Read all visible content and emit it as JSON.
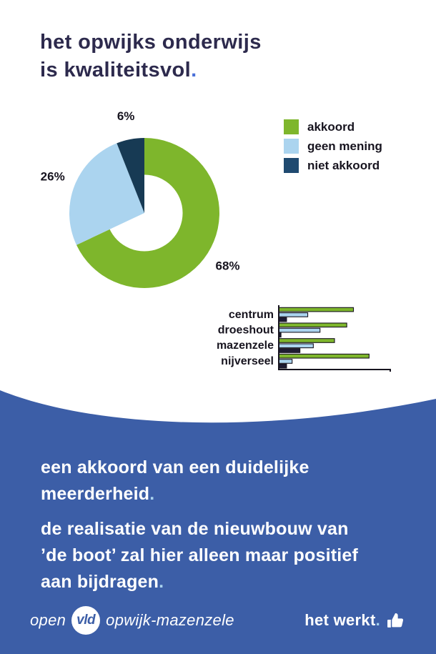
{
  "title": {
    "line1": "het opwijks onderwijs",
    "line2": "is kwaliteitsvol",
    "period": "."
  },
  "colors": {
    "background": "#ffffff",
    "panel_blue": "#3c5ea7",
    "accent_green": "#7eb62c",
    "accent_light_blue": "#abd4ef",
    "legend_navy": "#1f4a70",
    "pie_navy": "#173a54",
    "bar_navy": "#1e1b33",
    "title_text": "#2d2a4d",
    "chart_text": "#17141f",
    "title_period_blue": "#4a70d8",
    "light_blue_period": "#a9d3ee",
    "white": "#ffffff"
  },
  "legend": {
    "items": [
      {
        "label": "akkoord",
        "color": "#7eb62c"
      },
      {
        "label": "geen mening",
        "color": "#abd4ef"
      },
      {
        "label": "niet akkoord",
        "color": "#1f4a70"
      }
    ]
  },
  "chart_data": [
    {
      "type": "pie",
      "variant": "donut",
      "labels": [
        "akkoord",
        "geen mening",
        "niet akkoord"
      ],
      "values": [
        68,
        26,
        6
      ],
      "unit": "%",
      "data_labels": [
        "68%",
        "26%",
        "6%"
      ],
      "colors": [
        "#7eb62c",
        "#abd4ef",
        "#173a54"
      ],
      "start_angle_deg": 0,
      "direction": "clockwise",
      "inner_radius_ratio": 0.51,
      "legend_position": "right"
    },
    {
      "type": "bar",
      "orientation": "horizontal",
      "categories": [
        "centrum",
        "droeshout",
        "mazenzele",
        "nijverseel"
      ],
      "series": [
        {
          "name": "akkoord",
          "color": "#7eb62c",
          "values": [
            67,
            61,
            50,
            81
          ]
        },
        {
          "name": "geen mening",
          "color": "#abd4ef",
          "values": [
            26,
            37,
            31,
            12
          ]
        },
        {
          "name": "niet akkoord",
          "color": "#1e1b33",
          "values": [
            7,
            2,
            19,
            7
          ]
        }
      ],
      "xlim": [
        0,
        100
      ],
      "grid": false,
      "axis_color": "#17141f",
      "bar_outline_color": "#17141f"
    }
  ],
  "statement": {
    "p1_lines": [
      "een akkoord van een duidelijke",
      "meerderheid"
    ],
    "p1_period": ".",
    "p2_lines": [
      "de realisatie van de nieuwbouw van",
      "’de boot’ zal hier alleen maar positief",
      "aan bijdragen"
    ],
    "p2_period": "."
  },
  "footer": {
    "party_prefix": "open",
    "party_abbr": "vld",
    "party_suffix": "opwijk-mazenzele",
    "slogan": "het werkt",
    "slogan_period": ".",
    "icons": {
      "thumbs_up": "thumbs-up-icon",
      "party_logo": "vld-logo-icon"
    }
  }
}
